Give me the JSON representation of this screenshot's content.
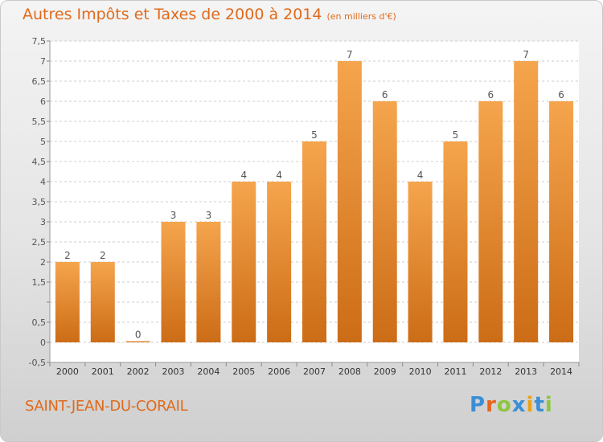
{
  "title": "Autres Impôts et Taxes de 2000 à 2014",
  "unit_note": "(en milliers d'€)",
  "commune": "SAINT-JEAN-DU-CORAIL",
  "brand": {
    "letters": [
      "P",
      "r",
      "o",
      "x",
      "i",
      "t",
      "i"
    ],
    "colors": [
      "#3a8fd6",
      "#e8641b",
      "#8dc63f",
      "#3a8fd6",
      "#e8a21b",
      "#3a8fd6",
      "#8dc63f"
    ]
  },
  "colors": {
    "bar_light": "#f5a54d",
    "bar_dark": "#cc6c16",
    "accent": "#e06a1b",
    "plot_bg": "#ffffff",
    "grid": "#cccccc"
  },
  "chart_data": {
    "type": "bar",
    "categories": [
      "2000",
      "2001",
      "2002",
      "2003",
      "2004",
      "2005",
      "2006",
      "2007",
      "2008",
      "2009",
      "2010",
      "2011",
      "2012",
      "2013",
      "2014"
    ],
    "values": [
      2,
      2,
      0,
      3,
      3,
      4,
      4,
      5,
      7,
      6,
      4,
      5,
      6,
      7,
      6
    ],
    "value_labels": [
      "2",
      "2",
      "0",
      "3",
      "3",
      "4",
      "4",
      "5",
      "7",
      "6",
      "4",
      "5",
      "6",
      "7",
      "6"
    ],
    "yticks": [
      -0.5,
      0,
      0.5,
      1,
      1.5,
      2,
      2.5,
      3,
      3.5,
      4,
      4.5,
      5,
      5.5,
      6,
      6.5,
      7,
      7.5
    ],
    "ytick_labels": [
      "-0,5",
      "0",
      "0,5",
      "",
      "1,5",
      "2",
      "2,5",
      "3",
      "3,5",
      "4",
      "4,5",
      "5",
      "5,5",
      "6",
      "6,5",
      "7",
      "7,5"
    ],
    "ylim": [
      -0.5,
      7.5
    ],
    "grid": "horizontal dashed",
    "title": "Autres Impôts et Taxes de 2000 à 2014",
    "xlabel": "",
    "ylabel": ""
  }
}
